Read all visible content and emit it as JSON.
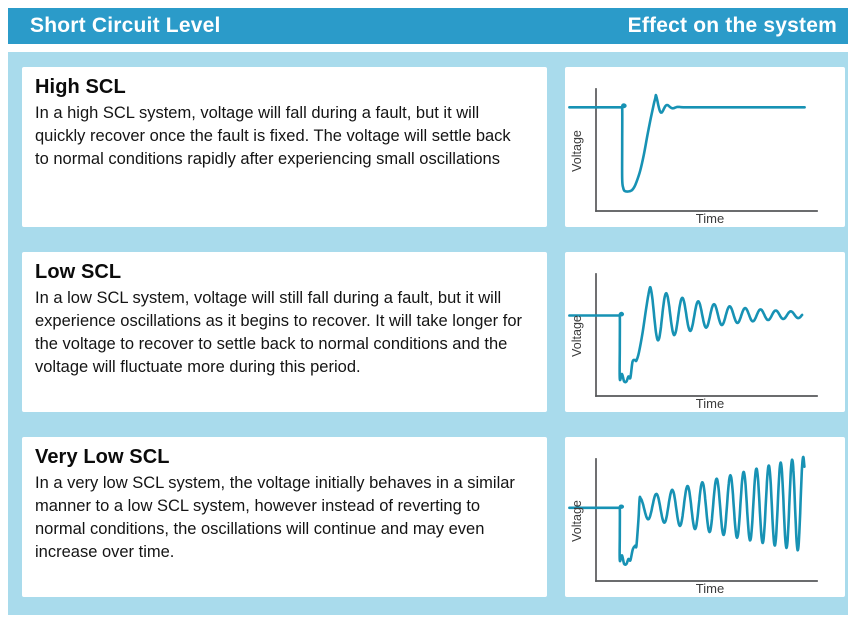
{
  "header": {
    "left_title": "Short Circuit Level",
    "right_title": "Effect on the system"
  },
  "colors": {
    "header_bg": "#2B9BC9",
    "panel_bg": "#A9DBEC",
    "curve": "#1792B4",
    "axis": "#56575A",
    "label": "#3B3B3B"
  },
  "rows": [
    {
      "title": "High SCL",
      "body": "In a high SCL system, voltage will fall during a fault, but it will quickly recover once the fault is fixed. The voltage will settle back to normal conditions rapidly after experiencing small oscillations"
    },
    {
      "title": "Low SCL",
      "body": "In a low SCL system, voltage will still fall during a fault, but it will experience oscillations as it begins to recover. It will take longer for the voltage to recover to settle back to normal conditions and the voltage will fluctuate more during this period."
    },
    {
      "title": "Very Low SCL",
      "body": "In a very low SCL system, the voltage initially behaves in a similar manner to a low SCL system, however instead of reverting to normal conditions, the oscillations will continue and may even increase over time."
    }
  ],
  "chart_data": [
    {
      "type": "line",
      "title": "High SCL voltage response",
      "xlabel": "Time",
      "ylabel": "Voltage",
      "x_range": [
        0,
        100
      ],
      "y_range": [
        0,
        100
      ],
      "normal_voltage": 85,
      "grid": false,
      "legend": false,
      "description": "Voltage holds at normal level, drops sharply when the fault occurs, stays low briefly, then recovers quickly with one small overshoot oscillation and settles back to normal.",
      "segments": [
        {
          "type": "pts",
          "points": [
            [
              1,
              85
            ],
            [
              22.6,
              85
            ],
            [
              23,
              85
            ],
            [
              23,
              55
            ],
            [
              23,
              26
            ],
            [
              23.4,
              19
            ],
            [
              24,
              16.5
            ],
            [
              25.5,
              16
            ],
            [
              27,
              17
            ],
            [
              28,
              19.5
            ],
            [
              29,
              24
            ],
            [
              30.5,
              33
            ],
            [
              32,
              46
            ],
            [
              33.5,
              62
            ],
            [
              35,
              77
            ],
            [
              36.2,
              88
            ],
            [
              36.8,
              92.5
            ]
          ]
        },
        {
          "type": "osc",
          "x0": 37,
          "x1": 47,
          "period0": 5,
          "period1": 4.5,
          "amp0": 10,
          "amp1": 0.3,
          "center0": 85,
          "center1": 85,
          "decay": "exp"
        },
        {
          "type": "pts",
          "points": [
            [
              48.5,
              85
            ],
            [
              55,
              85
            ],
            [
              99,
              85
            ]
          ]
        }
      ]
    },
    {
      "type": "line",
      "title": "Low SCL voltage response",
      "xlabel": "Time",
      "ylabel": "Voltage",
      "x_range": [
        0,
        100
      ],
      "y_range": [
        0,
        100
      ],
      "normal_voltage": 66,
      "grid": false,
      "legend": false,
      "description": "Voltage drops sharply during the fault, then recovers through damped oscillations that slowly decay back toward the normal level, fluctuating for a long period.",
      "segments": [
        {
          "type": "pts",
          "points": [
            [
              1,
              66
            ],
            [
              21.6,
              66
            ],
            [
              22,
              66
            ],
            [
              22,
              40
            ],
            [
              22,
              14
            ],
            [
              22.9,
              18
            ],
            [
              23.8,
              12
            ],
            [
              24.8,
              12
            ],
            [
              25.6,
              16
            ],
            [
              26.4,
              15
            ],
            [
              27.3,
              28
            ],
            [
              28.3,
              29.5
            ],
            [
              28.9,
              29
            ],
            [
              30,
              36
            ],
            [
              31.5,
              52
            ],
            [
              33,
              72
            ],
            [
              33.9,
              83
            ]
          ]
        },
        {
          "type": "osc",
          "x0": 34.6,
          "x1": 98,
          "period0": 6.8,
          "period1": 6.2,
          "amp0": 23,
          "amp1": 2.5,
          "center0": 66,
          "center1": 66.5,
          "decay": "exp"
        }
      ]
    },
    {
      "type": "line",
      "title": "Very low SCL voltage response",
      "xlabel": "Time",
      "ylabel": "Voltage",
      "x_range": [
        0,
        100
      ],
      "y_range": [
        0,
        100
      ],
      "normal_voltage": 60,
      "grid": false,
      "legend": false,
      "description": "Voltage drops sharply during the fault and begins to recover, but instead of settling the oscillations continue and grow in amplitude and frequency over time.",
      "segments": [
        {
          "type": "pts",
          "points": [
            [
              1,
              60
            ],
            [
              21.6,
              60
            ],
            [
              22,
              60
            ],
            [
              22,
              38
            ],
            [
              22,
              17
            ],
            [
              22.9,
              21
            ],
            [
              23.8,
              14
            ],
            [
              24.8,
              14
            ],
            [
              25.6,
              18
            ],
            [
              26.4,
              17
            ],
            [
              27.4,
              26
            ],
            [
              28.4,
              29
            ],
            [
              28.9,
              28.5
            ],
            [
              29.6,
              45
            ],
            [
              29.9,
              55
            ]
          ]
        },
        {
          "type": "osc",
          "x0": 30.3,
          "x1": 99,
          "period0": 7,
          "period1": 4.5,
          "amp0": 8,
          "amp1": 39,
          "center0": 60,
          "center1": 63,
          "decay": "linear"
        }
      ]
    }
  ]
}
